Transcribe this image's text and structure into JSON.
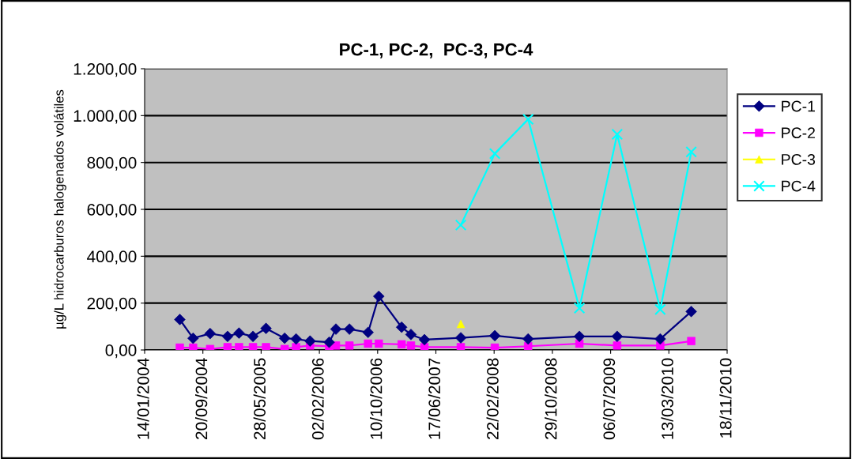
{
  "chart_data": {
    "type": "line",
    "title": "PC-1, PC-2,  PC-3, PC-4",
    "ylabel": "µg/L hidrocarburos halogenados volátiles",
    "x": [
      "2004-06-13",
      "2004-08-09",
      "2004-10-21",
      "2005-01-04",
      "2005-02-22",
      "2005-04-23",
      "2005-06-18",
      "2005-09-06",
      "2005-10-25",
      "2005-12-24",
      "2006-03-16",
      "2006-04-14",
      "2006-06-11",
      "2006-08-30",
      "2006-10-15",
      "2007-01-21",
      "2007-03-02",
      "2007-04-29",
      "2007-10-02",
      "2008-02-25",
      "2008-07-17",
      "2009-02-22",
      "2009-08-03",
      "2010-02-04",
      "2010-06-17"
    ],
    "series": [
      {
        "name": "PC-1",
        "color": "#000080",
        "marker": "diamond",
        "values": [
          130,
          50,
          70,
          58,
          72,
          58,
          92,
          50,
          47,
          38,
          33,
          89,
          89,
          75,
          229,
          97,
          66,
          44,
          52,
          61,
          47,
          58,
          58,
          47,
          164
        ]
      },
      {
        "name": "PC-2",
        "color": "#ff00ff",
        "marker": "square",
        "values": [
          10,
          10,
          4,
          12,
          12,
          12,
          12,
          4,
          12,
          19,
          16,
          19,
          19,
          27,
          27,
          24,
          19,
          12,
          12,
          10,
          16,
          27,
          19,
          19,
          38
        ]
      },
      {
        "name": "PC-3",
        "color": "#ffff00",
        "marker": "triangle",
        "values": [
          null,
          null,
          null,
          null,
          null,
          null,
          null,
          null,
          null,
          null,
          null,
          null,
          null,
          null,
          null,
          null,
          null,
          null,
          111,
          null,
          null,
          null,
          null,
          null,
          null
        ]
      },
      {
        "name": "PC-4",
        "color": "#00ffff",
        "marker": "cross",
        "values": [
          null,
          null,
          null,
          null,
          null,
          null,
          null,
          null,
          null,
          null,
          null,
          null,
          null,
          null,
          null,
          null,
          null,
          null,
          533,
          838,
          984,
          179,
          920,
          173,
          845
        ]
      }
    ],
    "xlim": [
      "2004-01-14",
      "2010-11-18"
    ],
    "xticks": [
      {
        "value": "2004-01-14",
        "label": "14/01/2004"
      },
      {
        "value": "2004-09-20",
        "label": "20/09/2004"
      },
      {
        "value": "2005-05-28",
        "label": "28/05/2005"
      },
      {
        "value": "2006-02-02",
        "label": "02/02/2006"
      },
      {
        "value": "2006-10-10",
        "label": "10/10/2006"
      },
      {
        "value": "2007-06-17",
        "label": "17/06/2007"
      },
      {
        "value": "2008-02-22",
        "label": "22/02/2008"
      },
      {
        "value": "2008-10-29",
        "label": "29/10/2008"
      },
      {
        "value": "2009-07-06",
        "label": "06/07/2009"
      },
      {
        "value": "2010-03-13",
        "label": "13/03/2010"
      },
      {
        "value": "2010-11-18",
        "label": "18/11/2010"
      }
    ],
    "ylim": [
      0,
      1200
    ],
    "yticks": [
      {
        "value": 0,
        "label": "0,00"
      },
      {
        "value": 200,
        "label": "200,00"
      },
      {
        "value": 400,
        "label": "400,00"
      },
      {
        "value": 600,
        "label": "600,00"
      },
      {
        "value": 800,
        "label": "800,00"
      },
      {
        "value": 1000,
        "label": "1.000,00"
      },
      {
        "value": 1200,
        "label": "1.200,00"
      }
    ],
    "grid": "y",
    "legend": "right"
  }
}
